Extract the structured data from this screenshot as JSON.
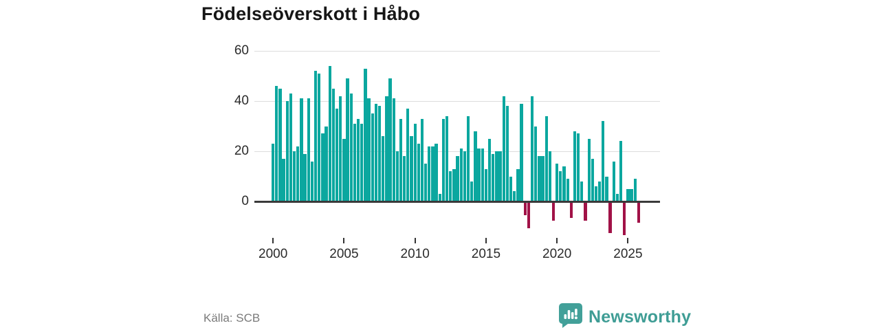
{
  "title": "Födelseöverskott i Håbo",
  "source": "Källa: SCB",
  "branding": {
    "name": "Newsworthy"
  },
  "colors": {
    "positive": "#0ba79f",
    "negative": "#a11247",
    "brand_teal": "#3f9d95",
    "gridline": "#dcdcdc",
    "axis_line": "#3a3a3a"
  },
  "chart_data": {
    "type": "bar",
    "title": "Födelseöverskott i Håbo",
    "frequency": "quarterly",
    "start_year": 2000,
    "x_tick_years": [
      2000,
      2005,
      2010,
      2015,
      2020,
      2025
    ],
    "y_ticks": [
      0,
      20,
      40,
      60
    ],
    "ylim": [
      -15,
      60
    ],
    "grid": "horizontal",
    "series": [
      {
        "name": "Födelseöverskott",
        "values": [
          23,
          46,
          45,
          17,
          40,
          43,
          20,
          22,
          41,
          19,
          41,
          16,
          52,
          51,
          27,
          30,
          54,
          45,
          37,
          42,
          25,
          49,
          43,
          31,
          33,
          31,
          53,
          41,
          35,
          39,
          38,
          26,
          42,
          49,
          41,
          20,
          33,
          18,
          37,
          26,
          31,
          23,
          33,
          15,
          22,
          22,
          23,
          3,
          33,
          34,
          12,
          13,
          18,
          21,
          20,
          34,
          8,
          28,
          21,
          21,
          13,
          25,
          19,
          20,
          20,
          42,
          38,
          10,
          4,
          13,
          39,
          -5,
          -10,
          42,
          30,
          18,
          18,
          34,
          20,
          -7,
          15,
          12,
          14,
          9,
          -6,
          28,
          27,
          8,
          -7,
          25,
          17,
          6,
          8,
          32,
          10,
          -12,
          16,
          3,
          24,
          -13,
          5,
          5,
          9,
          -8
        ]
      }
    ]
  }
}
